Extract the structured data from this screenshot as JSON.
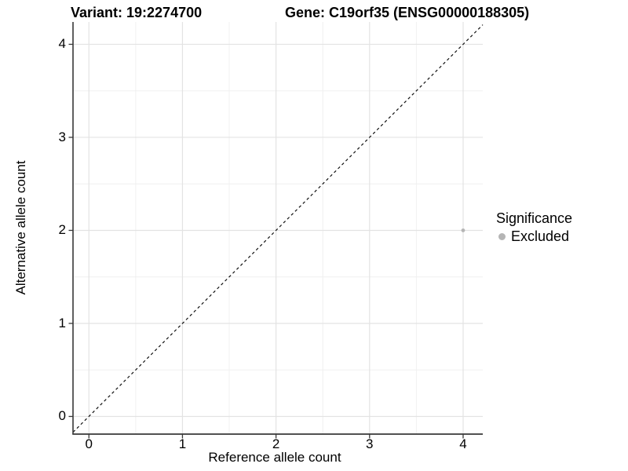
{
  "titles": {
    "variant": "Variant: 19:2274700",
    "gene": "Gene: C19orf35 (ENSG00000188305)"
  },
  "chart_data": {
    "type": "scatter",
    "xlabel": "Reference allele count",
    "ylabel": "Alternative allele count",
    "xticks": [
      0,
      1,
      2,
      3,
      4
    ],
    "yticks": [
      0,
      1,
      2,
      3,
      4
    ],
    "xlim": [
      -0.17,
      4.21
    ],
    "ylim": [
      -0.19,
      4.24
    ],
    "grid": "major and minor, light gray",
    "identity_line": {
      "type": "dashed",
      "slope": 1,
      "intercept": 0
    },
    "series": [
      {
        "name": "Excluded",
        "color": "#b5b5b5",
        "points": [
          {
            "x": 4,
            "y": 2
          }
        ]
      }
    ],
    "legend": {
      "title": "Significance",
      "position": "right",
      "items": [
        {
          "label": "Excluded",
          "color": "#b5b5b5"
        }
      ]
    }
  },
  "colors": {
    "background": "#ffffff",
    "grid_major": "#e3e3e3",
    "grid_minor": "#f0f0f0",
    "axis_line": "#383838",
    "dashed_line": "#111111",
    "text": "#000000",
    "excluded_gray": "#b5b5b5"
  }
}
